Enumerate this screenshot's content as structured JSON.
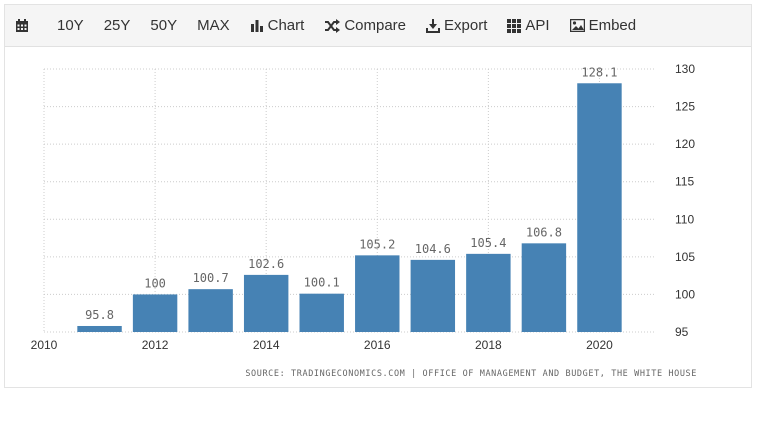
{
  "toolbar": {
    "items": [
      {
        "label": "",
        "icon": "calendar-icon"
      },
      {
        "label": "10Y",
        "icon": ""
      },
      {
        "label": "25Y",
        "icon": ""
      },
      {
        "label": "50Y",
        "icon": ""
      },
      {
        "label": "MAX",
        "icon": ""
      },
      {
        "label": "Chart",
        "icon": "bar-chart-icon"
      },
      {
        "label": "Compare",
        "icon": "shuffle-icon"
      },
      {
        "label": "Export",
        "icon": "download-icon"
      },
      {
        "label": "API",
        "icon": "grid-icon"
      },
      {
        "label": "Embed",
        "icon": "image-icon"
      }
    ]
  },
  "source": "SOURCE: TRADINGECONOMICS.COM | OFFICE OF MANAGEMENT AND BUDGET, THE WHITE HOUSE",
  "colors": {
    "bar": "#4682b4",
    "grid": "#cccccc",
    "axis_text": "#333333",
    "label_text": "#666666"
  },
  "chart_data": {
    "type": "bar",
    "title": "",
    "xlabel": "",
    "ylabel": "",
    "categories": [
      "2011",
      "2012",
      "2013",
      "2014",
      "2015",
      "2016",
      "2017",
      "2018",
      "2019",
      "2020"
    ],
    "values": [
      95.8,
      100,
      100.7,
      102.6,
      100.1,
      105.2,
      104.6,
      105.4,
      106.8,
      128.1
    ],
    "value_labels": [
      "95.8",
      "100",
      "100.7",
      "102.6",
      "100.1",
      "105.2",
      "104.6",
      "105.4",
      "106.8",
      "128.1"
    ],
    "x_ticks": [
      "2010",
      "2012",
      "2014",
      "2016",
      "2018",
      "2020"
    ],
    "y_ticks": [
      95,
      100,
      105,
      110,
      115,
      120,
      125,
      130
    ],
    "ylim": [
      95,
      130
    ],
    "xlim": [
      2010,
      2021
    ],
    "y_axis_side": "right",
    "grid": true
  }
}
